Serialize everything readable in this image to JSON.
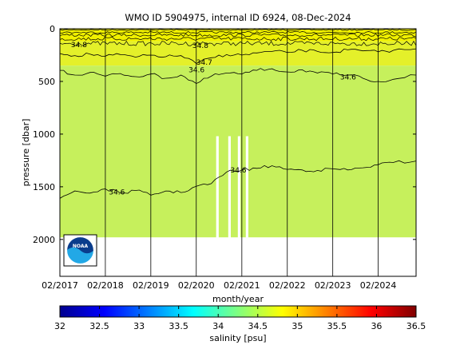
{
  "chart_data": [
    {
      "type": "heatmap",
      "title": "WMO ID 5904975, internal ID 6924, 08-Dec-2024",
      "xlabel": "month/year",
      "ylabel": "pressure [dbar]",
      "x_ticks": [
        "02/2017",
        "02/2018",
        "02/2019",
        "02/2020",
        "02/2021",
        "02/2022",
        "02/2023",
        "02/2024"
      ],
      "x_range": [
        "2017-02",
        "2024-12"
      ],
      "y_ticks": [
        0,
        500,
        1000,
        1500,
        2000
      ],
      "ylim": [
        2350,
        0
      ],
      "y_reversed": true,
      "grid": "vertical lines at each year tick",
      "colormap": "jet",
      "profile_max_pressure": 1980,
      "data_gaps": [
        {
          "date": "2020-07-20"
        },
        {
          "date": "2020-10-25"
        },
        {
          "date": "2021-01-10"
        },
        {
          "date": "2021-03-15"
        }
      ],
      "dominant_fields": [
        {
          "pressure_range": [
            0,
            120
          ],
          "salinity": 34.95,
          "color": "#f0f000"
        },
        {
          "pressure_range": [
            120,
            350
          ],
          "salinity": 34.8,
          "color": "#e4f02a"
        },
        {
          "pressure_range": [
            350,
            1980
          ],
          "salinity": 34.55,
          "color": "#c6f05c"
        }
      ],
      "contour_labels": [
        {
          "text": "34.8",
          "date": "2017-05",
          "pressure": 150
        },
        {
          "text": "34.8",
          "date": "2020-01",
          "pressure": 160
        },
        {
          "text": "34.7",
          "date": "2020-02",
          "pressure": 320
        },
        {
          "text": "34.6",
          "date": "2019-12",
          "pressure": 390
        },
        {
          "text": "34.6",
          "date": "2023-04",
          "pressure": 460
        },
        {
          "text": "34.6",
          "date": "2020-11",
          "pressure": 1340
        },
        {
          "text": "34.6",
          "date": "2018-03",
          "pressure": 1550
        }
      ],
      "contours": [
        {
          "level": 34.7,
          "points": [
            [
              "2017-02",
              235
            ],
            [
              "2017-06",
              255
            ],
            [
              "2017-10",
              240
            ],
            [
              "2018-02",
              260
            ],
            [
              "2018-06",
              245
            ],
            [
              "2018-10",
              270
            ],
            [
              "2019-02",
              250
            ],
            [
              "2019-06",
              265
            ],
            [
              "2019-10",
              255
            ],
            [
              "2020-02",
              330
            ],
            [
              "2020-06",
              275
            ],
            [
              "2020-10",
              245
            ],
            [
              "2021-02",
              250
            ],
            [
              "2021-06",
              230
            ],
            [
              "2021-10",
              215
            ],
            [
              "2022-02",
              225
            ],
            [
              "2022-06",
              205
            ],
            [
              "2022-10",
              215
            ],
            [
              "2023-02",
              225
            ],
            [
              "2023-06",
              200
            ],
            [
              "2023-10",
              210
            ],
            [
              "2024-02",
              220
            ],
            [
              "2024-06",
              205
            ],
            [
              "2024-12",
              190
            ]
          ]
        },
        {
          "level": 34.6,
          "points": [
            [
              "2017-02",
              395
            ],
            [
              "2017-06",
              440
            ],
            [
              "2017-10",
              415
            ],
            [
              "2018-02",
              450
            ],
            [
              "2018-06",
              425
            ],
            [
              "2018-10",
              455
            ],
            [
              "2019-02",
              430
            ],
            [
              "2019-06",
              470
            ],
            [
              "2019-10",
              440
            ],
            [
              "2020-02",
              520
            ],
            [
              "2020-06",
              450
            ],
            [
              "2020-10",
              420
            ],
            [
              "2021-02",
              430
            ],
            [
              "2021-06",
              395
            ],
            [
              "2021-10",
              380
            ],
            [
              "2022-02",
              410
            ],
            [
              "2022-06",
              390
            ],
            [
              "2022-10",
              420
            ],
            [
              "2023-02",
              430
            ],
            [
              "2023-06",
              440
            ],
            [
              "2023-10",
              470
            ],
            [
              "2024-02",
              500
            ],
            [
              "2024-06",
              480
            ],
            [
              "2024-12",
              440
            ]
          ]
        },
        {
          "level": 34.6,
          "points": [
            [
              "2017-02",
              1610
            ],
            [
              "2017-06",
              1540
            ],
            [
              "2017-10",
              1560
            ],
            [
              "2018-02",
              1520
            ],
            [
              "2018-06",
              1560
            ],
            [
              "2018-10",
              1535
            ],
            [
              "2019-02",
              1580
            ],
            [
              "2019-06",
              1540
            ],
            [
              "2019-10",
              1555
            ],
            [
              "2020-02",
              1495
            ],
            [
              "2020-06",
              1470
            ],
            [
              "2020-10",
              1360
            ],
            [
              "2021-02",
              1340
            ],
            [
              "2021-06",
              1325
            ],
            [
              "2021-10",
              1300
            ],
            [
              "2022-02",
              1335
            ],
            [
              "2022-06",
              1340
            ],
            [
              "2022-10",
              1345
            ],
            [
              "2023-02",
              1330
            ],
            [
              "2023-06",
              1340
            ],
            [
              "2023-10",
              1320
            ],
            [
              "2024-02",
              1290
            ],
            [
              "2024-06",
              1270
            ],
            [
              "2024-12",
              1255
            ]
          ]
        }
      ]
    },
    {
      "type": "colorbar",
      "label": "salinity [psu]",
      "range": [
        32,
        36.5
      ],
      "ticks": [
        "32",
        "32.5",
        "33",
        "33.5",
        "34",
        "34.5",
        "35",
        "35.5",
        "36",
        "36.5"
      ],
      "colormap": "jet"
    }
  ],
  "logo": {
    "text": "NOAA"
  }
}
